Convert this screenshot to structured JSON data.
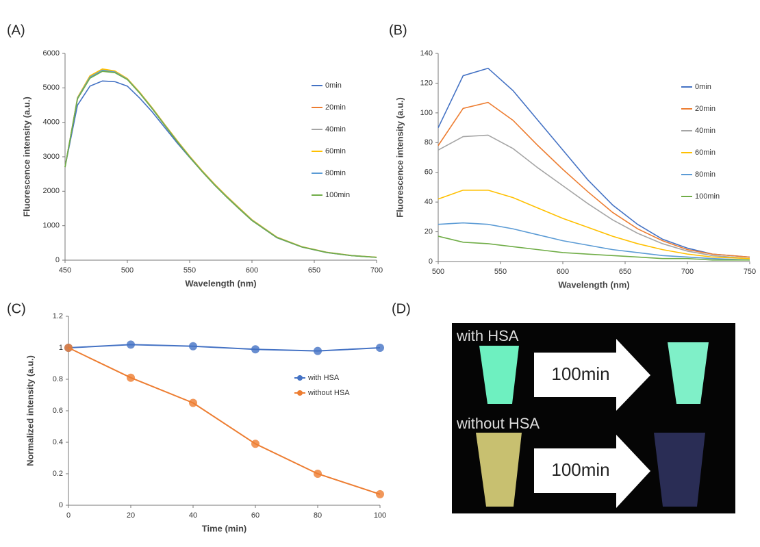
{
  "chart_data": [
    {
      "type": "line",
      "panel_label": "(A)",
      "xlabel": "Wavelength (nm)",
      "ylabel": "Fluorescence intensity (a.u.)",
      "x": [
        450,
        460,
        470,
        480,
        490,
        500,
        510,
        520,
        530,
        540,
        550,
        560,
        570,
        580,
        590,
        600,
        620,
        640,
        660,
        680,
        700
      ],
      "xlim": [
        450,
        700
      ],
      "xticks": [
        450,
        500,
        550,
        600,
        650,
        700
      ],
      "ylim": [
        0,
        6000
      ],
      "yticks": [
        0,
        1000,
        2000,
        3000,
        4000,
        5000,
        6000
      ],
      "legend": "right",
      "series": [
        {
          "name": "0min",
          "color": "#4472c4",
          "values": [
            2700,
            4500,
            5050,
            5200,
            5180,
            5050,
            4700,
            4300,
            3850,
            3400,
            2980,
            2570,
            2180,
            1820,
            1480,
            1150,
            650,
            380,
            220,
            130,
            80
          ]
        },
        {
          "name": "20min",
          "color": "#ed7d31",
          "values": [
            2700,
            4700,
            5300,
            5500,
            5450,
            5250,
            4850,
            4400,
            3920,
            3450,
            3000,
            2580,
            2190,
            1830,
            1490,
            1160,
            660,
            385,
            225,
            132,
            82
          ]
        },
        {
          "name": "40min",
          "color": "#a5a5a5",
          "values": [
            2700,
            4700,
            5320,
            5520,
            5470,
            5260,
            4860,
            4410,
            3930,
            3460,
            3010,
            2590,
            2200,
            1840,
            1500,
            1170,
            665,
            390,
            228,
            134,
            84
          ]
        },
        {
          "name": "60min",
          "color": "#ffc000",
          "values": [
            2700,
            4720,
            5350,
            5550,
            5490,
            5270,
            4870,
            4420,
            3940,
            3470,
            3020,
            2600,
            2210,
            1850,
            1510,
            1175,
            670,
            392,
            230,
            135,
            85
          ]
        },
        {
          "name": "80min",
          "color": "#5b9bd5",
          "values": [
            2700,
            4700,
            5310,
            5510,
            5460,
            5250,
            4850,
            4400,
            3920,
            3450,
            3000,
            2580,
            2190,
            1830,
            1490,
            1160,
            660,
            385,
            225,
            132,
            82
          ]
        },
        {
          "name": "100min",
          "color": "#70ad47",
          "values": [
            2700,
            4680,
            5280,
            5480,
            5440,
            5240,
            4840,
            4390,
            3910,
            3440,
            2990,
            2570,
            2180,
            1820,
            1480,
            1150,
            655,
            382,
            222,
            131,
            81
          ]
        }
      ]
    },
    {
      "type": "line",
      "panel_label": "(B)",
      "xlabel": "Wavelength (nm)",
      "ylabel": "Fluorescence intensity (a.u.)",
      "x": [
        500,
        520,
        540,
        560,
        580,
        600,
        620,
        640,
        660,
        680,
        700,
        720,
        750
      ],
      "xlim": [
        500,
        750
      ],
      "xticks": [
        500,
        550,
        600,
        650,
        700,
        750
      ],
      "ylim": [
        0,
        140
      ],
      "yticks": [
        0,
        20,
        40,
        60,
        80,
        100,
        120,
        140
      ],
      "legend": "right",
      "series": [
        {
          "name": "0min",
          "color": "#4472c4",
          "values": [
            90,
            125,
            130,
            115,
            95,
            75,
            55,
            38,
            25,
            15,
            9,
            5,
            3
          ]
        },
        {
          "name": "20min",
          "color": "#ed7d31",
          "values": [
            78,
            103,
            107,
            95,
            78,
            62,
            47,
            33,
            22,
            14,
            8,
            5,
            3
          ]
        },
        {
          "name": "40min",
          "color": "#a5a5a5",
          "values": [
            75,
            84,
            85,
            76,
            63,
            51,
            39,
            28,
            19,
            12,
            7,
            4,
            2
          ]
        },
        {
          "name": "60min",
          "color": "#ffc000",
          "values": [
            42,
            48,
            48,
            43,
            36,
            29,
            23,
            17,
            12,
            8,
            5,
            3,
            2
          ]
        },
        {
          "name": "80min",
          "color": "#5b9bd5",
          "values": [
            25,
            26,
            25,
            22,
            18,
            14,
            11,
            8,
            6,
            4,
            3,
            2,
            1
          ]
        },
        {
          "name": "100min",
          "color": "#70ad47",
          "values": [
            17,
            13,
            12,
            10,
            8,
            6,
            5,
            4,
            3,
            2,
            2,
            1,
            1
          ]
        }
      ]
    },
    {
      "type": "line",
      "panel_label": "(C)",
      "xlabel": "Time (min)",
      "ylabel": "Normalized intensity (a.u.)",
      "x": [
        0,
        20,
        40,
        60,
        80,
        100
      ],
      "xlim": [
        0,
        100
      ],
      "xticks": [
        0,
        20,
        40,
        60,
        80,
        100
      ],
      "ylim": [
        0,
        1.2
      ],
      "yticks": [
        0,
        0.2,
        0.4,
        0.6,
        0.8,
        1,
        1.2
      ],
      "legend": "center",
      "markers": true,
      "series": [
        {
          "name": "with HSA",
          "color": "#4472c4",
          "values": [
            1,
            1.02,
            1.01,
            0.99,
            0.98,
            1.0
          ]
        },
        {
          "name": "without HSA",
          "color": "#ed7d31",
          "values": [
            1,
            0.81,
            0.65,
            0.39,
            0.2,
            0.07
          ]
        }
      ]
    }
  ],
  "photo": {
    "panel_label": "(D)",
    "top_label": "with HSA",
    "bottom_label": "without HSA",
    "arrow_labels": [
      "100min",
      "100min"
    ]
  }
}
